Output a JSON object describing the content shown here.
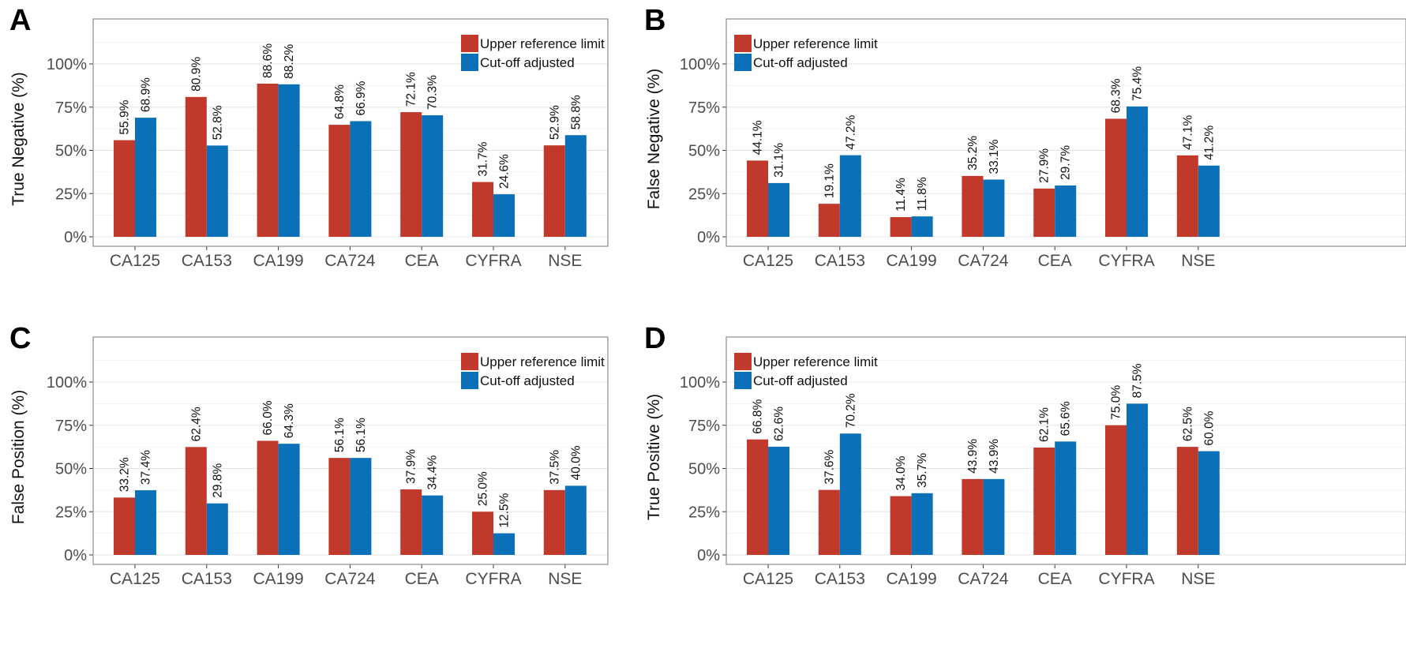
{
  "legend": {
    "upper_label": "Upper reference limit",
    "cutoff_label": "Cut-off adjusted",
    "upper_color": "#c0392b",
    "cutoff_color": "#0a70b8"
  },
  "chart_data": [
    {
      "type": "bar",
      "panel_letter": "A",
      "title": "",
      "xlabel": "",
      "ylabel": "True Negative (%)",
      "ylim": [
        0,
        1.15
      ],
      "yticks": [
        "0%",
        "25%",
        "50%",
        "75%",
        "100%"
      ],
      "legend_position": "top-right",
      "grid": true,
      "categories": [
        "CA125",
        "CA153",
        "CA199",
        "CA724",
        "CEA",
        "CYFRA",
        "NSE"
      ],
      "series": [
        {
          "name": "Upper reference limit",
          "values": [
            55.9,
            80.9,
            88.6,
            64.8,
            72.1,
            31.7,
            52.9
          ],
          "labels": [
            "55.9%",
            "80.9%",
            "88.6%",
            "64.8%",
            "72.1%",
            "31.7%",
            "52.9%"
          ]
        },
        {
          "name": "Cut-off adjusted",
          "values": [
            68.9,
            52.8,
            88.2,
            66.9,
            70.3,
            24.6,
            58.8
          ],
          "labels": [
            "68.9%",
            "52.8%",
            "88.2%",
            "66.9%",
            "70.3%",
            "24.6%",
            "58.8%"
          ]
        }
      ]
    },
    {
      "type": "bar",
      "panel_letter": "B",
      "title": "",
      "xlabel": "",
      "ylabel": "False Negative (%)",
      "ylim": [
        0,
        1.15
      ],
      "yticks": [
        "0%",
        "25%",
        "50%",
        "75%",
        "100%"
      ],
      "legend_position": "top-left",
      "grid": true,
      "categories": [
        "CA125",
        "CA153",
        "CA199",
        "CA724",
        "CEA",
        "CYFRA",
        "NSE"
      ],
      "series": [
        {
          "name": "Upper reference limit",
          "values": [
            44.1,
            19.1,
            11.4,
            35.2,
            27.9,
            68.3,
            47.1
          ],
          "labels": [
            "44.1%",
            "19.1%",
            "11.4%",
            "35.2%",
            "27.9%",
            "68.3%",
            "47.1%"
          ]
        },
        {
          "name": "Cut-off adjusted",
          "values": [
            31.1,
            47.2,
            11.8,
            33.1,
            29.7,
            75.4,
            41.2
          ],
          "labels": [
            "31.1%",
            "47.2%",
            "11.8%",
            "33.1%",
            "29.7%",
            "75.4%",
            "41.2%"
          ]
        }
      ]
    },
    {
      "type": "bar",
      "panel_letter": "C",
      "title": "",
      "xlabel": "",
      "ylabel": "False Position (%)",
      "ylim": [
        0,
        1.15
      ],
      "yticks": [
        "0%",
        "25%",
        "50%",
        "75%",
        "100%"
      ],
      "legend_position": "top-right",
      "grid": true,
      "categories": [
        "CA125",
        "CA153",
        "CA199",
        "CA724",
        "CEA",
        "CYFRA",
        "NSE"
      ],
      "series": [
        {
          "name": "Upper reference limit",
          "values": [
            33.2,
            62.4,
            66.0,
            56.1,
            37.9,
            25.0,
            37.5
          ],
          "labels": [
            "33.2%",
            "62.4%",
            "66.0%",
            "56.1%",
            "37.9%",
            "25.0%",
            "37.5%"
          ]
        },
        {
          "name": "Cut-off adjusted",
          "values": [
            37.4,
            29.8,
            64.3,
            56.1,
            34.4,
            12.5,
            40.0
          ],
          "labels": [
            "37.4%",
            "29.8%",
            "64.3%",
            "56.1%",
            "34.4%",
            "12.5%",
            "40.0%"
          ]
        }
      ]
    },
    {
      "type": "bar",
      "panel_letter": "D",
      "title": "",
      "xlabel": "",
      "ylabel": "True Positive (%)",
      "ylim": [
        0,
        1.15
      ],
      "yticks": [
        "0%",
        "25%",
        "50%",
        "75%",
        "100%"
      ],
      "legend_position": "top-left",
      "grid": true,
      "categories": [
        "CA125",
        "CA153",
        "CA199",
        "CA724",
        "CEA",
        "CYFRA",
        "NSE"
      ],
      "series": [
        {
          "name": "Upper reference limit",
          "values": [
            66.8,
            37.6,
            34.0,
            43.9,
            62.1,
            75.0,
            62.5
          ],
          "labels": [
            "66.8%",
            "37.6%",
            "34.0%",
            "43.9%",
            "62.1%",
            "75.0%",
            "62.5%"
          ]
        },
        {
          "name": "Cut-off adjusted",
          "values": [
            62.6,
            70.2,
            35.7,
            43.9,
            65.6,
            87.5,
            60.0
          ],
          "labels": [
            "62.6%",
            "70.2%",
            "35.7%",
            "43.9%",
            "65.6%",
            "87.5%",
            "60.0%"
          ]
        }
      ]
    }
  ]
}
